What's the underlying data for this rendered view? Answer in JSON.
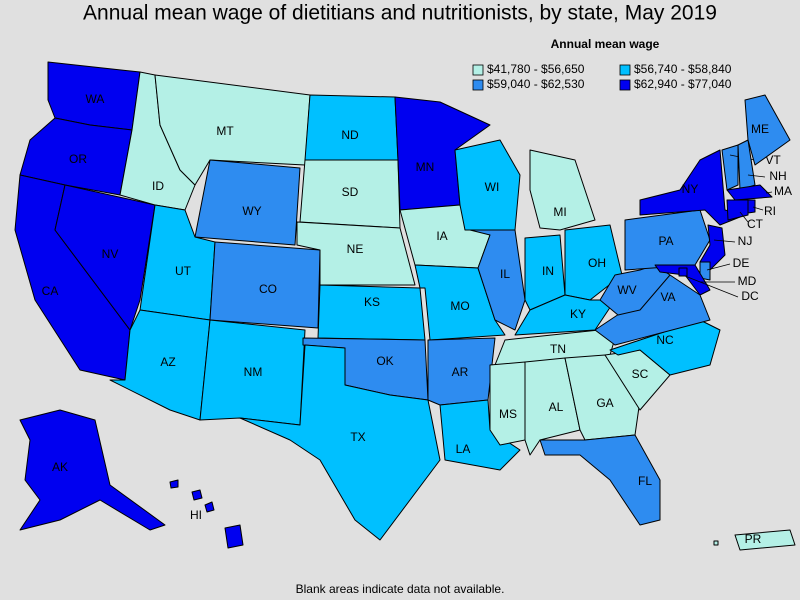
{
  "title": "Annual mean wage of dietitians and nutritionists, by state, May 2019",
  "legend": {
    "title": "Annual mean wage",
    "items": [
      {
        "label": "$41,780 - $56,650",
        "color": "#b4f0e6"
      },
      {
        "label": "$56,740 - $58,840",
        "color": "#00c0ff"
      },
      {
        "label": "$59,040 - $62,530",
        "color": "#2e8cf0"
      },
      {
        "label": "$62,940 - $77,040",
        "color": "#0000f0"
      }
    ]
  },
  "states": [
    {
      "label": "WA",
      "bin": 3
    },
    {
      "label": "OR",
      "bin": 3
    },
    {
      "label": "CA",
      "bin": 3
    },
    {
      "label": "NV",
      "bin": 3
    },
    {
      "label": "ID",
      "bin": 0
    },
    {
      "label": "MT",
      "bin": 0
    },
    {
      "label": "WY",
      "bin": 2
    },
    {
      "label": "UT",
      "bin": 1
    },
    {
      "label": "CO",
      "bin": 2
    },
    {
      "label": "AZ",
      "bin": 1
    },
    {
      "label": "NM",
      "bin": 1
    },
    {
      "label": "ND",
      "bin": 1
    },
    {
      "label": "SD",
      "bin": 0
    },
    {
      "label": "NE",
      "bin": 0
    },
    {
      "label": "KS",
      "bin": 1
    },
    {
      "label": "OK",
      "bin": 2
    },
    {
      "label": "TX",
      "bin": 1
    },
    {
      "label": "MN",
      "bin": 3
    },
    {
      "label": "IA",
      "bin": 0
    },
    {
      "label": "MO",
      "bin": 1
    },
    {
      "label": "AR",
      "bin": 2
    },
    {
      "label": "LA",
      "bin": 1
    },
    {
      "label": "WI",
      "bin": 1
    },
    {
      "label": "IL",
      "bin": 2
    },
    {
      "label": "MI",
      "bin": 0
    },
    {
      "label": "IN",
      "bin": 1
    },
    {
      "label": "OH",
      "bin": 1
    },
    {
      "label": "KY",
      "bin": 1
    },
    {
      "label": "TN",
      "bin": 0
    },
    {
      "label": "MS",
      "bin": 0
    },
    {
      "label": "AL",
      "bin": 0
    },
    {
      "label": "GA",
      "bin": 0
    },
    {
      "label": "FL",
      "bin": 2
    },
    {
      "label": "SC",
      "bin": 0
    },
    {
      "label": "NC",
      "bin": 1
    },
    {
      "label": "VA",
      "bin": 2
    },
    {
      "label": "WV",
      "bin": 2
    },
    {
      "label": "PA",
      "bin": 2
    },
    {
      "label": "NY",
      "bin": 3
    },
    {
      "label": "NJ",
      "bin": 3
    },
    {
      "label": "DE",
      "bin": 2
    },
    {
      "label": "MD",
      "bin": 3
    },
    {
      "label": "DC",
      "bin": 3
    },
    {
      "label": "VT",
      "bin": 2
    },
    {
      "label": "NH",
      "bin": 2
    },
    {
      "label": "ME",
      "bin": 2
    },
    {
      "label": "MA",
      "bin": 3
    },
    {
      "label": "CT",
      "bin": 3
    },
    {
      "label": "RI",
      "bin": 3
    },
    {
      "label": "AK",
      "bin": 3
    },
    {
      "label": "HI",
      "bin": 3
    },
    {
      "label": "PR",
      "bin": 0
    }
  ],
  "footnote": "Blank areas indicate data not available."
}
